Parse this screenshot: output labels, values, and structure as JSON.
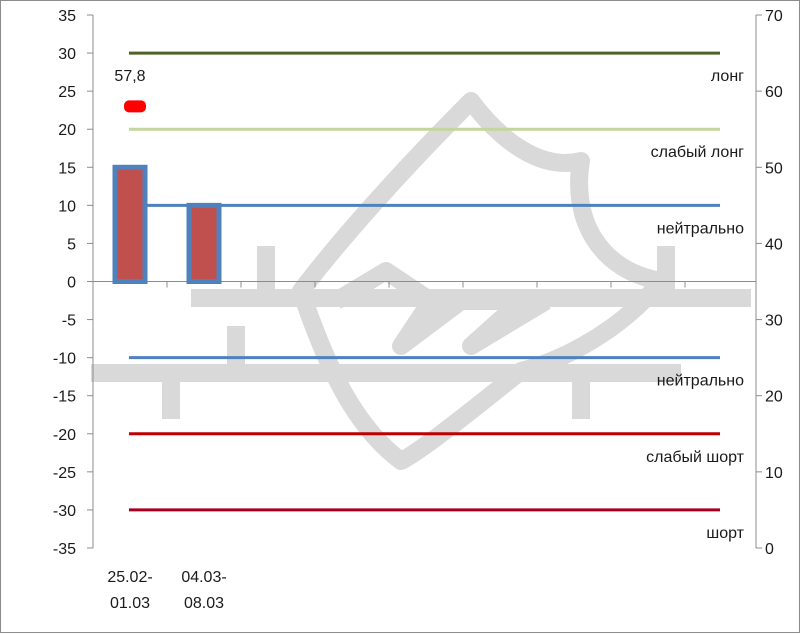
{
  "chart_data": {
    "type": "bar",
    "categories": [
      [
        "25.02-",
        "01.03"
      ],
      [
        "04.03-",
        "08.03"
      ]
    ],
    "series": [
      {
        "values": [
          15,
          10
        ],
        "fill": "#c0504d",
        "stroke": "#4f81bd"
      }
    ],
    "left_axis": {
      "ylim": [
        -35,
        35
      ],
      "ticks": [
        35,
        30,
        25,
        20,
        15,
        10,
        5,
        0,
        -5,
        -10,
        -15,
        -20,
        -25,
        -30,
        -35
      ]
    },
    "right_axis": {
      "ylim": [
        0,
        70
      ],
      "ticks": [
        70,
        60,
        50,
        40,
        30,
        20,
        10,
        0
      ]
    },
    "reference_lines": [
      {
        "y": 30,
        "label": "лонг",
        "color": "#4f6228"
      },
      {
        "y": 20,
        "label": "слабый лонг",
        "color": "#c3d69b"
      },
      {
        "y": 10,
        "label": "нейтрально",
        "color": "#4f81bd"
      },
      {
        "y": -10,
        "label": "нейтрально",
        "color": "#4f81bd"
      },
      {
        "y": -20,
        "label": "слабый шорт",
        "color": "#c00000"
      },
      {
        "y": -30,
        "label": "шорт",
        "color": "#a50021"
      }
    ],
    "marker": {
      "label": "57,8",
      "y": 23,
      "color": "#ff0000"
    },
    "grid": false
  },
  "watermark": {
    "text": "КУ",
    "color": "#d9d9d9"
  }
}
